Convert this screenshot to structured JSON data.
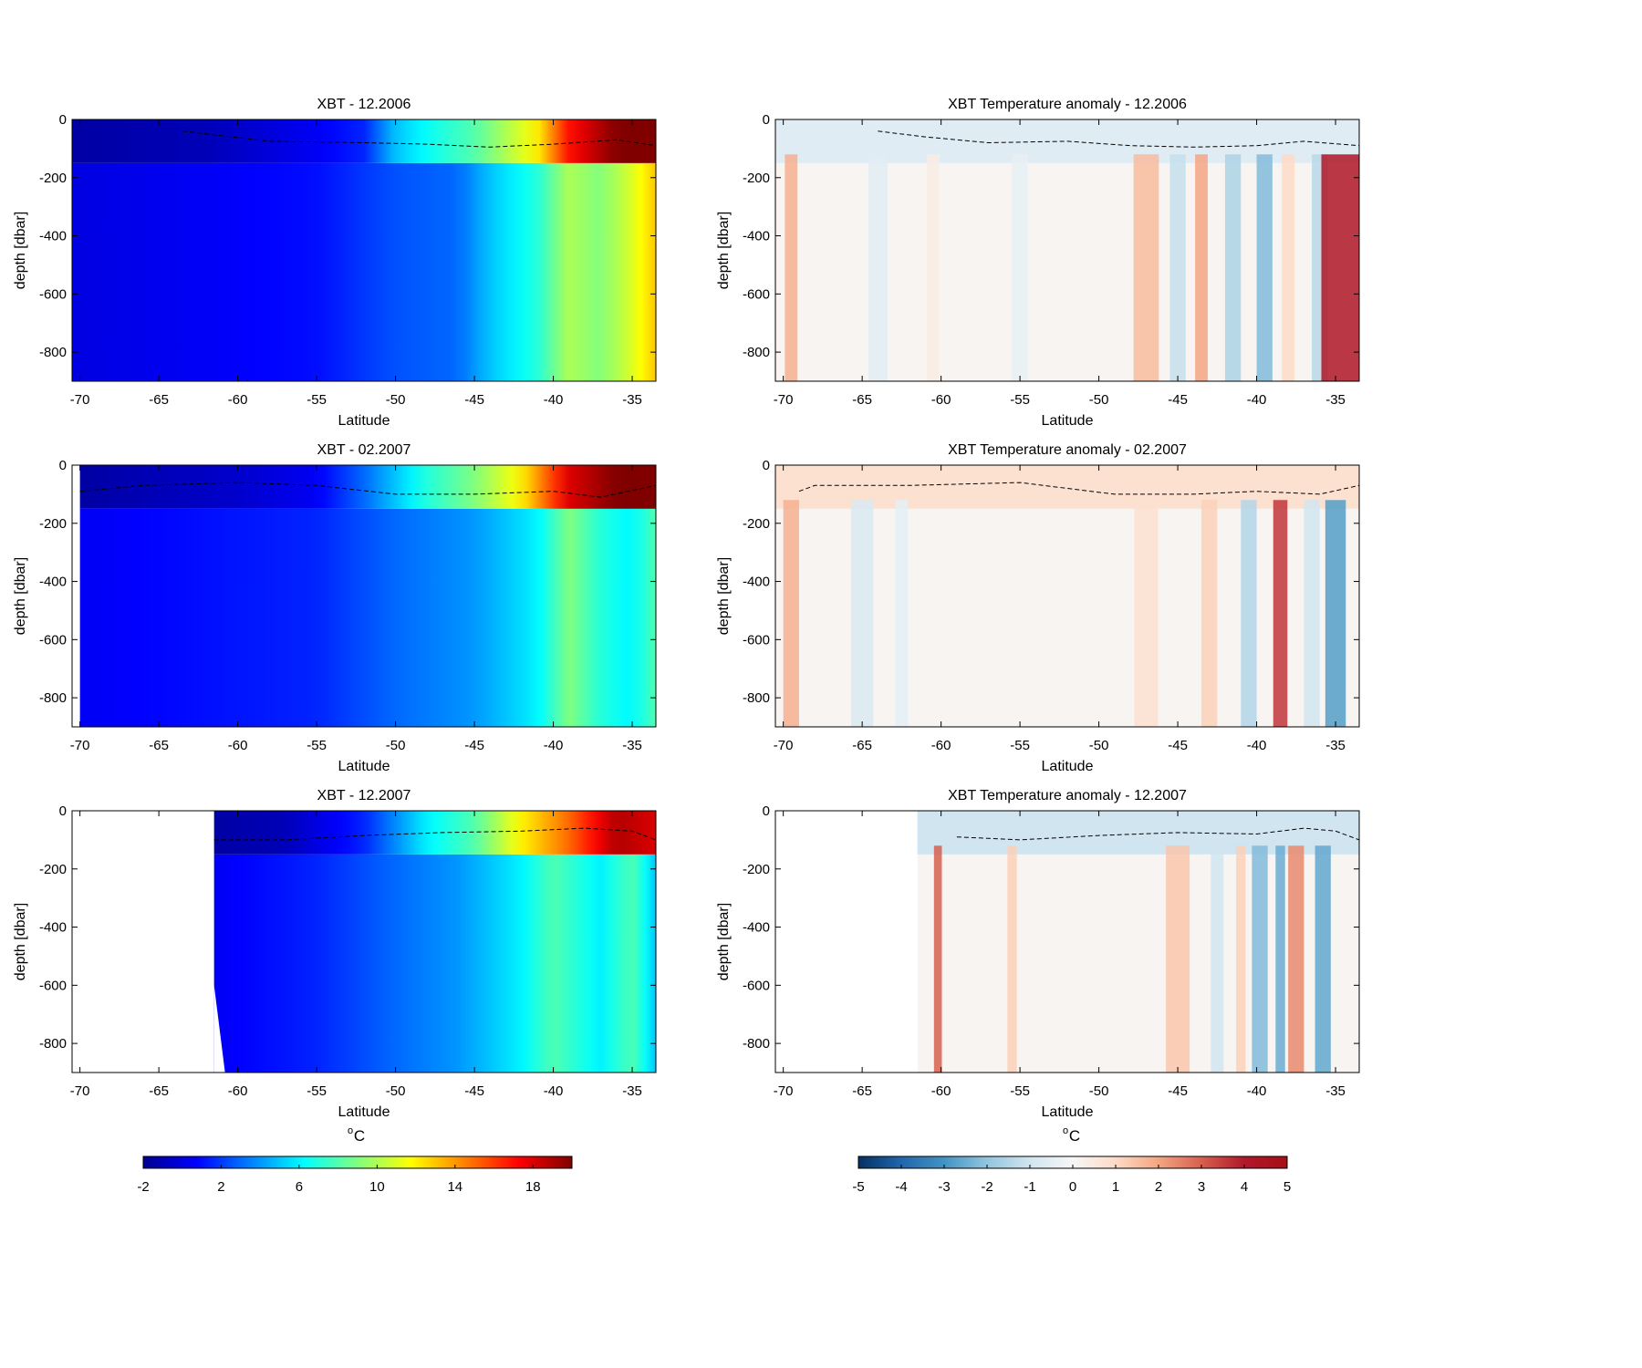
{
  "colors": {
    "temp_scale": [
      "#00008f",
      "#0000ff",
      "#0080ff",
      "#00ffff",
      "#80ff80",
      "#ffff00",
      "#ff8000",
      "#ff0000",
      "#800000"
    ],
    "anom_scale": [
      "#053061",
      "#2166ac",
      "#4393c3",
      "#92c5de",
      "#d1e5f0",
      "#f7f7f7",
      "#fddbc7",
      "#f4a582",
      "#d6604d",
      "#b2182b",
      "#a50f15"
    ],
    "frame": "#000000",
    "mld_line": "#000000"
  },
  "colorbars": [
    {
      "unit_prefix": "o",
      "unit": "C",
      "ticks": [
        "-2",
        "2",
        "6",
        "10",
        "14",
        "18"
      ],
      "range": [
        -2,
        20
      ]
    },
    {
      "unit_prefix": "o",
      "unit": "C",
      "ticks": [
        "-5",
        "-4",
        "-3",
        "-2",
        "-1",
        "0",
        "1",
        "2",
        "3",
        "4",
        "5"
      ],
      "range": [
        -5,
        5
      ]
    }
  ],
  "chart_data": [
    {
      "type": "heatmap",
      "title": "XBT - 12.2006",
      "xlabel": "Latitude",
      "ylabel": "depth [dbar]",
      "xlim": [
        -70.5,
        -33.5
      ],
      "ylim": [
        -900,
        0
      ],
      "xticks": [
        "-70",
        "-65",
        "-60",
        "-55",
        "-50",
        "-45",
        "-40",
        "-35"
      ],
      "yticks": [
        "0",
        "-200",
        "-400",
        "-600",
        "-800"
      ],
      "colormap": "temp",
      "lat_start": -70.5,
      "surface_temp": [
        {
          "lat": -70.5,
          "t": -1.5
        },
        {
          "lat": -62,
          "t": -1
        },
        {
          "lat": -55,
          "t": 0.5
        },
        {
          "lat": -52,
          "t": 1.5
        },
        {
          "lat": -50,
          "t": 5
        },
        {
          "lat": -47,
          "t": 7
        },
        {
          "lat": -45,
          "t": 8
        },
        {
          "lat": -43,
          "t": 10
        },
        {
          "lat": -41,
          "t": 12
        },
        {
          "lat": -39,
          "t": 17
        },
        {
          "lat": -36,
          "t": 20
        },
        {
          "lat": -33.5,
          "t": 20
        }
      ],
      "deep_temp": [
        {
          "lat": -70.5,
          "t": 0
        },
        {
          "lat": -55,
          "t": 1
        },
        {
          "lat": -50,
          "t": 2.5
        },
        {
          "lat": -46,
          "t": 3
        },
        {
          "lat": -44,
          "t": 5
        },
        {
          "lat": -41,
          "t": 7
        },
        {
          "lat": -39,
          "t": 10
        },
        {
          "lat": -37,
          "t": 9
        },
        {
          "lat": -35,
          "t": 11
        },
        {
          "lat": -33.5,
          "t": 13
        }
      ],
      "mld": [
        {
          "lat": -63.5,
          "d": -40
        },
        {
          "lat": -58,
          "d": -75
        },
        {
          "lat": -52,
          "d": -80
        },
        {
          "lat": -48,
          "d": -85
        },
        {
          "lat": -44,
          "d": -95
        },
        {
          "lat": -40,
          "d": -85
        },
        {
          "lat": -36,
          "d": -70
        },
        {
          "lat": -33.5,
          "d": -90
        }
      ]
    },
    {
      "type": "heatmap",
      "title": "XBT Temperature anomaly - 12.2006",
      "xlabel": "Latitude",
      "ylabel": "depth [dbar]",
      "xlim": [
        -70.5,
        -33.5
      ],
      "ylim": [
        -900,
        0
      ],
      "xticks": [
        "-70",
        "-65",
        "-60",
        "-55",
        "-50",
        "-45",
        "-40",
        "-35"
      ],
      "yticks": [
        "0",
        "-200",
        "-400",
        "-600",
        "-800"
      ],
      "colormap": "anomaly",
      "lat_start": -70.5,
      "surface_anomaly": -0.6,
      "stripes": [
        {
          "lat": -69.5,
          "w": 0.8,
          "v": 1.8
        },
        {
          "lat": -64,
          "w": 1.2,
          "v": -0.6
        },
        {
          "lat": -60.5,
          "w": 0.8,
          "v": 0.4
        },
        {
          "lat": -55,
          "w": 1.0,
          "v": -0.4
        },
        {
          "lat": -47,
          "w": 1.6,
          "v": 1.6
        },
        {
          "lat": -45,
          "w": 1.0,
          "v": -1.2
        },
        {
          "lat": -43.5,
          "w": 0.8,
          "v": 2.0
        },
        {
          "lat": -41.5,
          "w": 1.0,
          "v": -1.6
        },
        {
          "lat": -39.5,
          "w": 1.0,
          "v": -2.2
        },
        {
          "lat": -38,
          "w": 0.8,
          "v": 1.0
        },
        {
          "lat": -36,
          "w": 1.0,
          "v": -1.4
        },
        {
          "lat": -34.7,
          "w": 2.4,
          "v": 4.2
        }
      ],
      "mld": [
        {
          "lat": -64,
          "d": -40
        },
        {
          "lat": -61,
          "d": -60
        },
        {
          "lat": -57,
          "d": -80
        },
        {
          "lat": -52,
          "d": -75
        },
        {
          "lat": -48,
          "d": -90
        },
        {
          "lat": -44,
          "d": -95
        },
        {
          "lat": -40,
          "d": -90
        },
        {
          "lat": -37,
          "d": -75
        },
        {
          "lat": -33.5,
          "d": -90
        }
      ]
    },
    {
      "type": "heatmap",
      "title": "XBT - 02.2007",
      "xlabel": "Latitude",
      "ylabel": "depth [dbar]",
      "xlim": [
        -70.5,
        -33.5
      ],
      "ylim": [
        -900,
        0
      ],
      "xticks": [
        "-70",
        "-65",
        "-60",
        "-55",
        "-50",
        "-45",
        "-40",
        "-35"
      ],
      "yticks": [
        "0",
        "-200",
        "-400",
        "-600",
        "-800"
      ],
      "colormap": "temp",
      "lat_start": -70,
      "surface_temp": [
        {
          "lat": -70,
          "t": -1.5
        },
        {
          "lat": -60,
          "t": -0.5
        },
        {
          "lat": -55,
          "t": 0.5
        },
        {
          "lat": -52,
          "t": 3
        },
        {
          "lat": -48,
          "t": 7
        },
        {
          "lat": -45,
          "t": 9
        },
        {
          "lat": -42,
          "t": 12
        },
        {
          "lat": -39,
          "t": 18
        },
        {
          "lat": -36,
          "t": 20
        },
        {
          "lat": -33.5,
          "t": 20
        }
      ],
      "deep_temp": [
        {
          "lat": -70,
          "t": 0.5
        },
        {
          "lat": -55,
          "t": 1.5
        },
        {
          "lat": -50,
          "t": 3
        },
        {
          "lat": -45,
          "t": 4
        },
        {
          "lat": -41,
          "t": 6
        },
        {
          "lat": -39,
          "t": 9
        },
        {
          "lat": -37,
          "t": 7
        },
        {
          "lat": -35,
          "t": 6
        },
        {
          "lat": -33.5,
          "t": 8
        }
      ],
      "mld": [
        {
          "lat": -70,
          "d": -90
        },
        {
          "lat": -66,
          "d": -70
        },
        {
          "lat": -60,
          "d": -60
        },
        {
          "lat": -55,
          "d": -70
        },
        {
          "lat": -50,
          "d": -100
        },
        {
          "lat": -45,
          "d": -100
        },
        {
          "lat": -40,
          "d": -90
        },
        {
          "lat": -37,
          "d": -110
        },
        {
          "lat": -33.5,
          "d": -70
        }
      ]
    },
    {
      "type": "heatmap",
      "title": "XBT Temperature anomaly - 02.2007",
      "xlabel": "Latitude",
      "ylabel": "depth [dbar]",
      "xlim": [
        -70.5,
        -33.5
      ],
      "ylim": [
        -900,
        0
      ],
      "xticks": [
        "-70",
        "-65",
        "-60",
        "-55",
        "-50",
        "-45",
        "-40",
        "-35"
      ],
      "yticks": [
        "0",
        "-200",
        "-400",
        "-600",
        "-800"
      ],
      "colormap": "anomaly",
      "lat_start": -70.5,
      "surface_anomaly": 0.8,
      "stripes": [
        {
          "lat": -69.5,
          "w": 1.0,
          "v": 1.8
        },
        {
          "lat": -65,
          "w": 1.4,
          "v": -0.8
        },
        {
          "lat": -62.5,
          "w": 0.8,
          "v": -0.5
        },
        {
          "lat": -47,
          "w": 1.5,
          "v": 0.8
        },
        {
          "lat": -43,
          "w": 1.0,
          "v": 1.2
        },
        {
          "lat": -40.5,
          "w": 1.0,
          "v": -1.5
        },
        {
          "lat": -38.5,
          "w": 0.9,
          "v": 3.6
        },
        {
          "lat": -36.5,
          "w": 1.0,
          "v": -1.0
        },
        {
          "lat": -35,
          "w": 1.3,
          "v": -2.8
        }
      ],
      "mld": [
        {
          "lat": -69,
          "d": -90
        },
        {
          "lat": -68,
          "d": -70
        },
        {
          "lat": -62,
          "d": -70
        },
        {
          "lat": -55,
          "d": -60
        },
        {
          "lat": -52,
          "d": -80
        },
        {
          "lat": -49,
          "d": -100
        },
        {
          "lat": -44,
          "d": -100
        },
        {
          "lat": -40,
          "d": -90
        },
        {
          "lat": -36,
          "d": -100
        },
        {
          "lat": -33.5,
          "d": -70
        }
      ]
    },
    {
      "type": "heatmap",
      "title": "XBT - 12.2007",
      "xlabel": "Latitude",
      "ylabel": "depth [dbar]",
      "xlim": [
        -70.5,
        -33.5
      ],
      "ylim": [
        -900,
        0
      ],
      "xticks": [
        "-70",
        "-65",
        "-60",
        "-55",
        "-50",
        "-45",
        "-40",
        "-35"
      ],
      "yticks": [
        "0",
        "-200",
        "-400",
        "-600",
        "-800"
      ],
      "colormap": "temp",
      "lat_start": -61.5,
      "surface_temp": [
        {
          "lat": -61.5,
          "t": -1.5
        },
        {
          "lat": -57,
          "t": -1
        },
        {
          "lat": -52,
          "t": 1.5
        },
        {
          "lat": -48,
          "t": 6
        },
        {
          "lat": -45,
          "t": 8
        },
        {
          "lat": -42,
          "t": 12
        },
        {
          "lat": -39,
          "t": 15
        },
        {
          "lat": -36,
          "t": 19
        },
        {
          "lat": -33.5,
          "t": 18
        }
      ],
      "deep_temp": [
        {
          "lat": -61.5,
          "t": 0.5
        },
        {
          "lat": -55,
          "t": 1.5
        },
        {
          "lat": -50,
          "t": 3
        },
        {
          "lat": -46,
          "t": 4
        },
        {
          "lat": -42,
          "t": 6
        },
        {
          "lat": -40,
          "t": 8
        },
        {
          "lat": -37,
          "t": 6
        },
        {
          "lat": -35,
          "t": 8
        },
        {
          "lat": -33.5,
          "t": 5
        }
      ],
      "mld": [
        {
          "lat": -61.5,
          "d": -100
        },
        {
          "lat": -57,
          "d": -100
        },
        {
          "lat": -52,
          "d": -85
        },
        {
          "lat": -47,
          "d": -75
        },
        {
          "lat": -42,
          "d": -70
        },
        {
          "lat": -38,
          "d": -60
        },
        {
          "lat": -35,
          "d": -70
        },
        {
          "lat": -33.5,
          "d": -100
        }
      ]
    },
    {
      "type": "heatmap",
      "title": "XBT Temperature anomaly - 12.2007",
      "xlabel": "Latitude",
      "ylabel": "depth [dbar]",
      "xlim": [
        -70.5,
        -33.5
      ],
      "ylim": [
        -900,
        0
      ],
      "xticks": [
        "-70",
        "-65",
        "-60",
        "-55",
        "-50",
        "-45",
        "-40",
        "-35"
      ],
      "yticks": [
        "0",
        "-200",
        "-400",
        "-600",
        "-800"
      ],
      "colormap": "anomaly",
      "lat_start": -61.5,
      "surface_anomaly": -1.0,
      "stripes": [
        {
          "lat": -60.2,
          "w": 0.5,
          "v": 3.0
        },
        {
          "lat": -55.5,
          "w": 0.6,
          "v": 1.2
        },
        {
          "lat": -45,
          "w": 1.5,
          "v": 1.4
        },
        {
          "lat": -42.5,
          "w": 0.8,
          "v": -1.0
        },
        {
          "lat": -41,
          "w": 0.6,
          "v": 1.2
        },
        {
          "lat": -39.8,
          "w": 1.0,
          "v": -2.2
        },
        {
          "lat": -38.5,
          "w": 0.6,
          "v": -2.5
        },
        {
          "lat": -37.5,
          "w": 1.0,
          "v": 2.4
        },
        {
          "lat": -35.8,
          "w": 1.0,
          "v": -2.6
        }
      ],
      "mld": [
        {
          "lat": -59,
          "d": -90
        },
        {
          "lat": -55,
          "d": -100
        },
        {
          "lat": -50,
          "d": -85
        },
        {
          "lat": -45,
          "d": -75
        },
        {
          "lat": -40,
          "d": -80
        },
        {
          "lat": -37,
          "d": -60
        },
        {
          "lat": -35,
          "d": -70
        },
        {
          "lat": -33.5,
          "d": -100
        }
      ]
    }
  ]
}
